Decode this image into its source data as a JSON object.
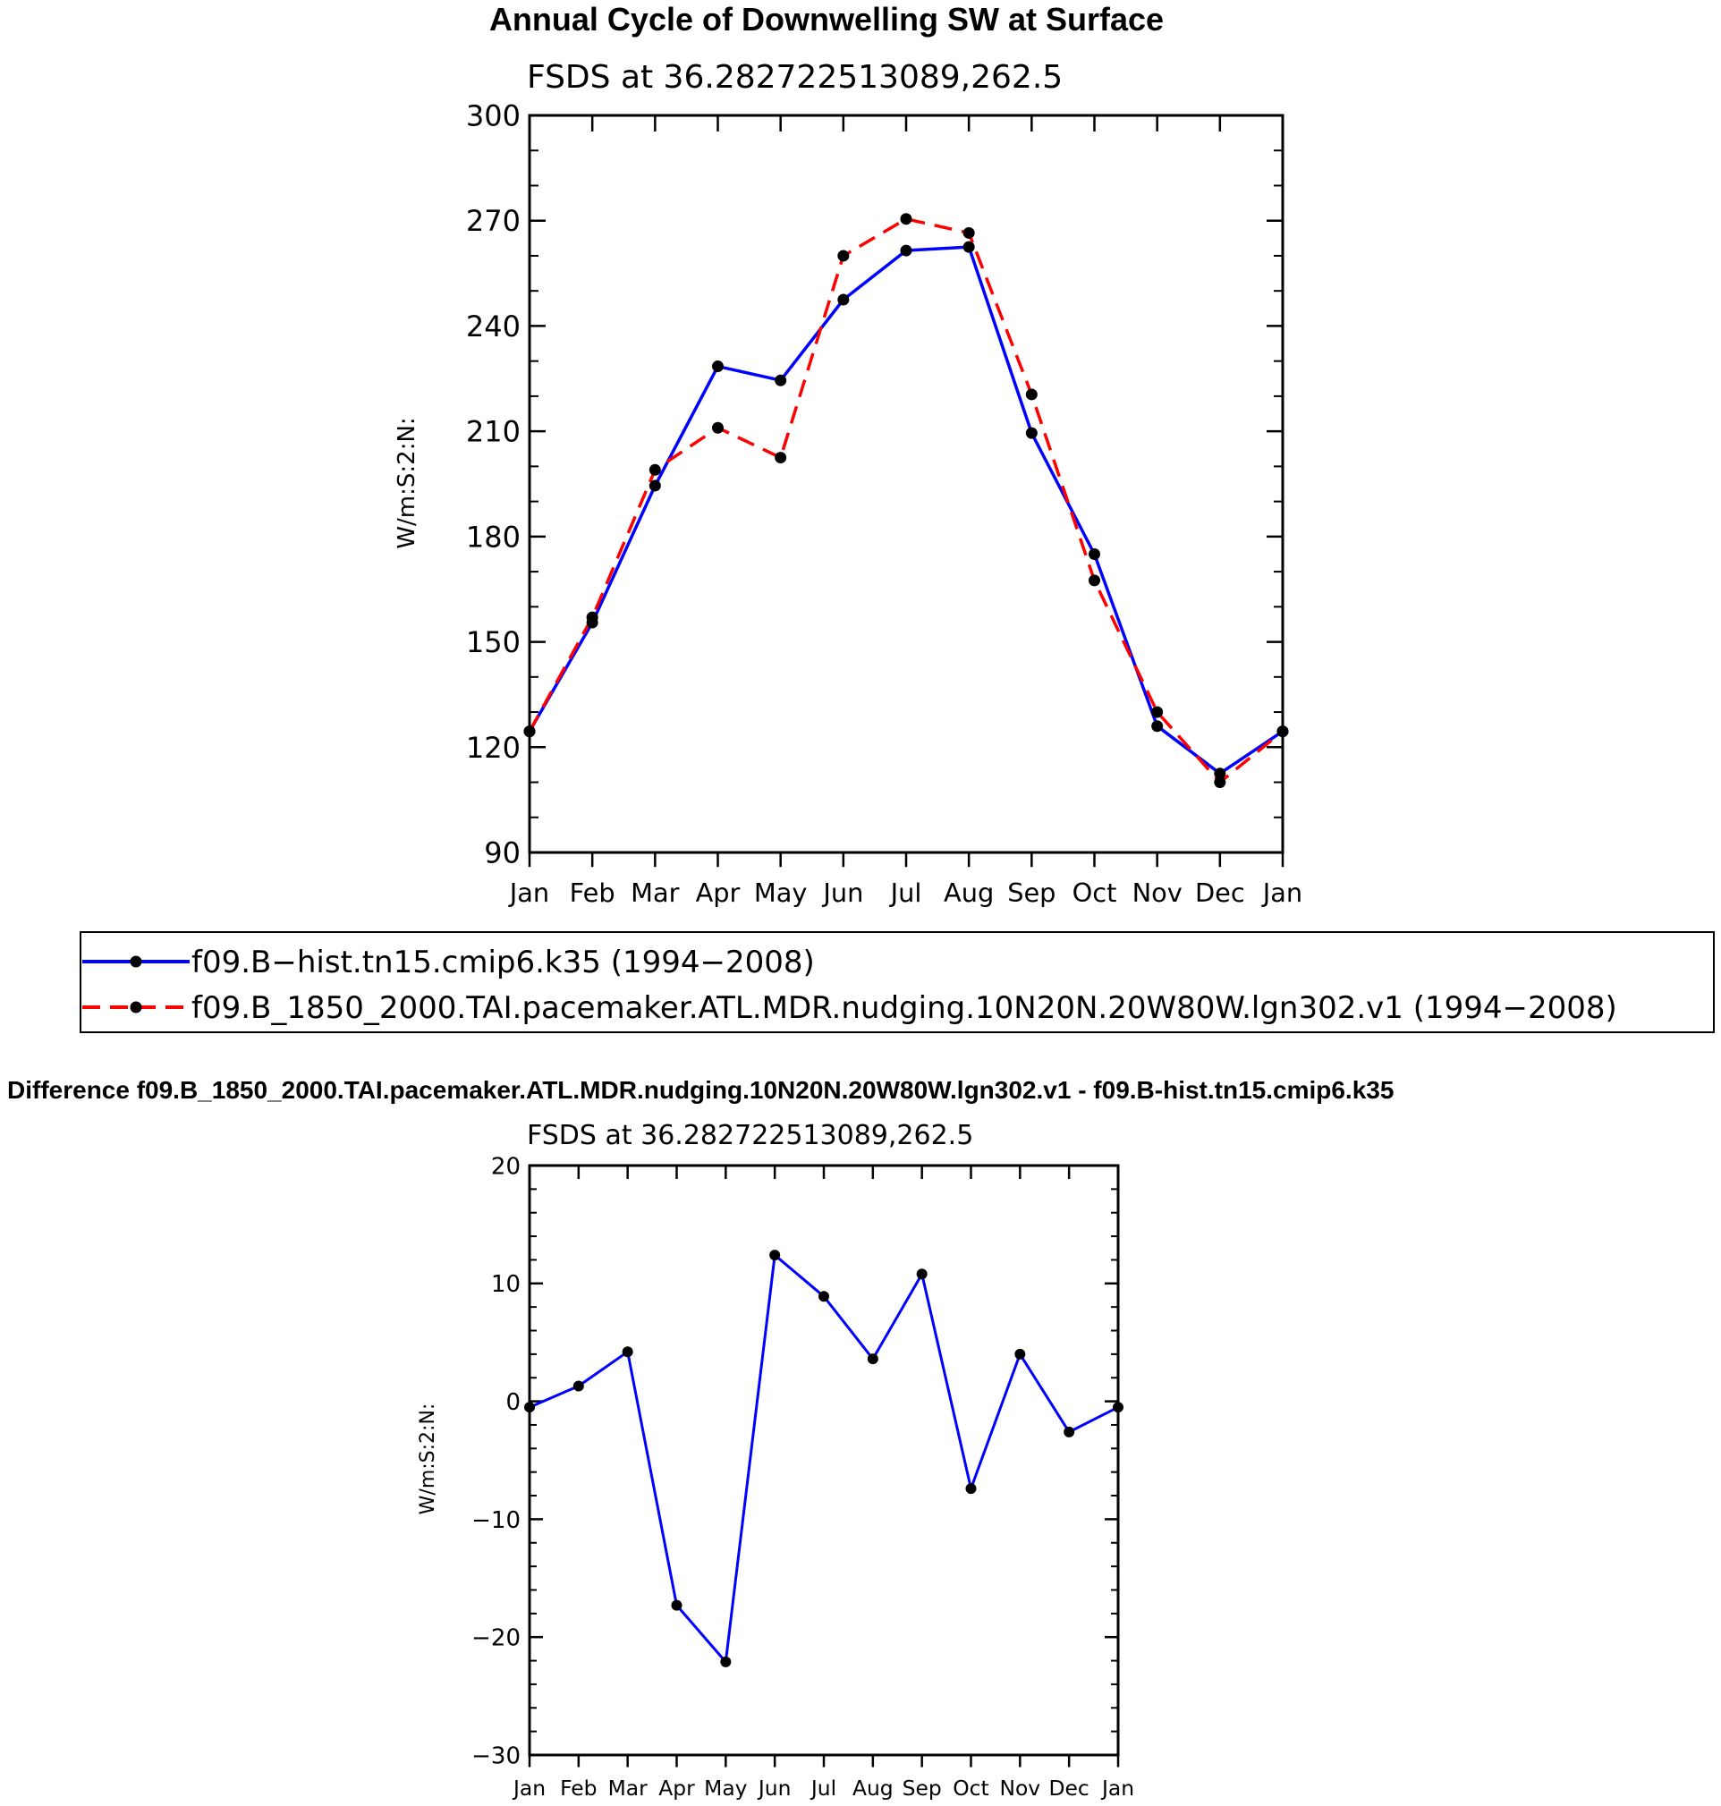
{
  "top_chart": {
    "title": "Annual Cycle of Downwelling SW at Surface",
    "subtitle": "FSDS at 36.282722513089,262.5",
    "ylabel": "W/m:S:2:N:"
  },
  "bottom_chart": {
    "title": "Difference f09.B_1850_2000.TAI.pacemaker.ATL.MDR.nudging.10N20N.20W80W.lgn302.v1 - f09.B-hist.tn15.cmip6.k35",
    "subtitle": "FSDS at 36.282722513089,262.5",
    "ylabel": "W/m:S:2:N:"
  },
  "legend": {
    "items": [
      {
        "label": "f09.B−hist.tn15.cmip6.k35 (1994−2008)",
        "color": "#0000ff",
        "dashed": false
      },
      {
        "label": "f09.B_1850_2000.TAI.pacemaker.ATL.MDR.nudging.10N20N.20W80W.lgn302.v1 (1994−2008)",
        "color": "#ff0000",
        "dashed": true
      }
    ]
  },
  "chart_data": [
    {
      "type": "line",
      "title": "Annual Cycle of Downwelling SW at Surface",
      "subtitle": "FSDS at 36.282722513089,262.5",
      "ylabel": "W/m:S:2:N:",
      "xlabel": "",
      "categories": [
        "Jan",
        "Feb",
        "Mar",
        "Apr",
        "May",
        "Jun",
        "Jul",
        "Aug",
        "Sep",
        "Oct",
        "Nov",
        "Dec",
        "Jan"
      ],
      "ylim": [
        90,
        300
      ],
      "yticks": [
        90,
        120,
        150,
        180,
        210,
        240,
        270,
        300
      ],
      "legend": "bottom",
      "grid": false,
      "series": [
        {
          "name": "f09.B−hist.tn15.cmip6.k35 (1994−2008)",
          "color": "#0000ff",
          "values": [
            124.5,
            155.5,
            194.5,
            228.5,
            224.5,
            247.5,
            261.5,
            262.5,
            209.5,
            175,
            126,
            112.5,
            124.5
          ]
        },
        {
          "name": "f09.B_1850_2000.TAI.pacemaker.ATL.MDR.nudging.10N20N.20W80W.lgn302.v1 (1994−2008)",
          "color": "#ff0000",
          "values": [
            124.5,
            157,
            199,
            211,
            202.5,
            260,
            270.5,
            266.5,
            220.5,
            167.5,
            130,
            110,
            124.5
          ]
        }
      ]
    },
    {
      "type": "line",
      "title": "Difference f09.B_1850_2000.TAI.pacemaker.ATL.MDR.nudging.10N20N.20W80W.lgn302.v1 - f09.B-hist.tn15.cmip6.k35",
      "subtitle": "FSDS at 36.282722513089,262.5",
      "ylabel": "W/m:S:2:N:",
      "xlabel": "",
      "categories": [
        "Jan",
        "Feb",
        "Mar",
        "Apr",
        "May",
        "Jun",
        "Jul",
        "Aug",
        "Sep",
        "Oct",
        "Nov",
        "Dec",
        "Jan"
      ],
      "ylim": [
        -30,
        20
      ],
      "yticks": [
        -30,
        -20,
        -10,
        0,
        10,
        20
      ],
      "grid": false,
      "series": [
        {
          "color": "#0000ff",
          "values": [
            -0.5,
            1.3,
            4.2,
            -17.3,
            -22.1,
            12.4,
            8.9,
            3.6,
            10.8,
            -7.4,
            4.0,
            -2.6,
            -0.5
          ]
        }
      ]
    }
  ]
}
